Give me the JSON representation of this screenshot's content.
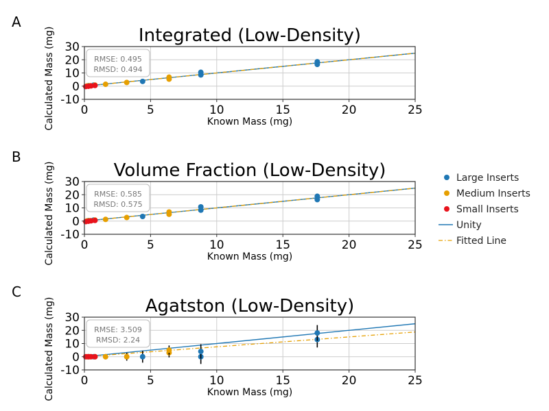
{
  "legend": [
    {
      "label": "Large Inserts",
      "kind": "marker",
      "color": "#1f77b4"
    },
    {
      "label": "Medium Inserts",
      "kind": "marker",
      "color": "#e69f00"
    },
    {
      "label": "Small Inserts",
      "kind": "marker",
      "color": "#e8131c"
    },
    {
      "label": "Unity",
      "kind": "line",
      "color": "#1f77b4"
    },
    {
      "label": "Fitted Line",
      "kind": "dashdot",
      "color": "#e69f00"
    }
  ],
  "colors": {
    "large": "#1f77b4",
    "medium": "#e69f00",
    "small": "#e8131c",
    "unity": "#1f77b4",
    "fitted": "#e69f00",
    "grid": "#cccccc",
    "error_bar": "#000000"
  },
  "chart_data": [
    {
      "panel": "A",
      "type": "scatter",
      "title": "Integrated (Low-Density)",
      "xlabel": "Known Mass (mg)",
      "ylabel": "Calculated Mass (mg)",
      "xlim": [
        0,
        25
      ],
      "ylim": [
        -10,
        30
      ],
      "xticks": [
        0,
        5,
        10,
        15,
        20,
        25
      ],
      "yticks": [
        -10,
        0,
        10,
        20,
        30
      ],
      "grid": true,
      "stats": {
        "rmse": "RMSE: 0.495",
        "rmsd": "RMSD: 0.494"
      },
      "fitted_line": {
        "slope": 1.0,
        "intercept": 0.0
      },
      "series": [
        {
          "name": "Large Inserts",
          "points": [
            {
              "x": 0.3,
              "y": 0.3,
              "err": 0.3
            },
            {
              "x": 0.7,
              "y": 0.8,
              "err": 0.3
            },
            {
              "x": 4.4,
              "y": 3.6,
              "err": 0.8
            },
            {
              "x": 8.8,
              "y": 8.5,
              "err": 1.0
            },
            {
              "x": 8.8,
              "y": 10.5,
              "err": 1.0
            },
            {
              "x": 17.6,
              "y": 16.5,
              "err": 1.0
            },
            {
              "x": 17.6,
              "y": 18.5,
              "err": 1.0
            }
          ]
        },
        {
          "name": "Medium Inserts",
          "points": [
            {
              "x": 0.2,
              "y": 0.1,
              "err": 0.3
            },
            {
              "x": 0.4,
              "y": 0.3,
              "err": 0.3
            },
            {
              "x": 0.8,
              "y": 0.8,
              "err": 0.3
            },
            {
              "x": 1.6,
              "y": 1.4,
              "err": 0.5
            },
            {
              "x": 3.2,
              "y": 2.8,
              "err": 0.6
            },
            {
              "x": 6.4,
              "y": 5.3,
              "err": 0.8
            },
            {
              "x": 6.4,
              "y": 6.8,
              "err": 0.8
            }
          ]
        },
        {
          "name": "Small Inserts",
          "points": [
            {
              "x": 0.1,
              "y": -0.3,
              "err": 0.3
            },
            {
              "x": 0.3,
              "y": -0.1,
              "err": 0.3
            },
            {
              "x": 0.5,
              "y": 0.2,
              "err": 0.3
            },
            {
              "x": 0.8,
              "y": 0.5,
              "err": 0.3
            }
          ]
        }
      ]
    },
    {
      "panel": "B",
      "type": "scatter",
      "title": "Volume Fraction (Low-Density)",
      "xlabel": "Known Mass (mg)",
      "ylabel": "Calculated Mass (mg)",
      "xlim": [
        0,
        25
      ],
      "ylim": [
        -10,
        30
      ],
      "xticks": [
        0,
        5,
        10,
        15,
        20,
        25
      ],
      "yticks": [
        -10,
        0,
        10,
        20,
        30
      ],
      "grid": true,
      "stats": {
        "rmse": "RMSE: 0.585",
        "rmsd": "RMSD: 0.575"
      },
      "fitted_line": {
        "slope": 1.0,
        "intercept": 0.0
      },
      "series": [
        {
          "name": "Large Inserts",
          "points": [
            {
              "x": 0.3,
              "y": 0.3,
              "err": 0.3
            },
            {
              "x": 0.7,
              "y": 0.8,
              "err": 0.3
            },
            {
              "x": 4.4,
              "y": 3.5,
              "err": 0.8
            },
            {
              "x": 8.8,
              "y": 8.3,
              "err": 1.0
            },
            {
              "x": 8.8,
              "y": 10.8,
              "err": 1.0
            },
            {
              "x": 17.6,
              "y": 16.3,
              "err": 1.0
            },
            {
              "x": 17.6,
              "y": 18.8,
              "err": 1.0
            }
          ]
        },
        {
          "name": "Medium Inserts",
          "points": [
            {
              "x": 0.2,
              "y": 0.1,
              "err": 0.3
            },
            {
              "x": 0.4,
              "y": 0.3,
              "err": 0.3
            },
            {
              "x": 0.8,
              "y": 0.8,
              "err": 0.3
            },
            {
              "x": 1.6,
              "y": 1.3,
              "err": 0.5
            },
            {
              "x": 3.2,
              "y": 2.7,
              "err": 0.6
            },
            {
              "x": 6.4,
              "y": 5.2,
              "err": 0.8
            },
            {
              "x": 6.4,
              "y": 6.9,
              "err": 0.8
            }
          ]
        },
        {
          "name": "Small Inserts",
          "points": [
            {
              "x": 0.1,
              "y": -0.4,
              "err": 0.3
            },
            {
              "x": 0.3,
              "y": -0.1,
              "err": 0.3
            },
            {
              "x": 0.5,
              "y": 0.2,
              "err": 0.3
            },
            {
              "x": 0.8,
              "y": 0.5,
              "err": 0.3
            }
          ]
        }
      ]
    },
    {
      "panel": "C",
      "type": "scatter",
      "title": "Agatston (Low-Density)",
      "xlabel": "Known Mass (mg)",
      "ylabel": "Calculated Mass (mg)",
      "xlim": [
        0,
        25
      ],
      "ylim": [
        -10,
        30
      ],
      "xticks": [
        0,
        5,
        10,
        15,
        20,
        25
      ],
      "yticks": [
        -10,
        0,
        10,
        20,
        30
      ],
      "grid": true,
      "stats": {
        "rmse": "RMSE: 3.509",
        "rmsd": "RMSD: 2.24"
      },
      "fitted_line": {
        "slope": 0.75,
        "intercept": 0.0
      },
      "series": [
        {
          "name": "Large Inserts",
          "points": [
            {
              "x": 0.3,
              "y": 0.0,
              "err": 1.5
            },
            {
              "x": 0.7,
              "y": 0.0,
              "err": 1.5
            },
            {
              "x": 4.4,
              "y": 0.0,
              "err": 4.5
            },
            {
              "x": 8.8,
              "y": 0.0,
              "err": 5.5
            },
            {
              "x": 8.8,
              "y": 4.0,
              "err": 5.5
            },
            {
              "x": 17.6,
              "y": 13.0,
              "err": 6.0
            },
            {
              "x": 17.6,
              "y": 18.0,
              "err": 6.0
            }
          ]
        },
        {
          "name": "Medium Inserts",
          "points": [
            {
              "x": 0.2,
              "y": 0.0,
              "err": 1.0
            },
            {
              "x": 0.4,
              "y": 0.0,
              "err": 1.0
            },
            {
              "x": 0.8,
              "y": 0.0,
              "err": 1.0
            },
            {
              "x": 1.6,
              "y": 0.0,
              "err": 2.0
            },
            {
              "x": 3.2,
              "y": 0.0,
              "err": 3.0
            },
            {
              "x": 6.4,
              "y": 3.0,
              "err": 3.5
            },
            {
              "x": 6.4,
              "y": 5.0,
              "err": 3.5
            }
          ]
        },
        {
          "name": "Small Inserts",
          "points": [
            {
              "x": 0.1,
              "y": 0.0,
              "err": 0.5
            },
            {
              "x": 0.3,
              "y": 0.0,
              "err": 0.5
            },
            {
              "x": 0.5,
              "y": 0.0,
              "err": 0.5
            },
            {
              "x": 0.8,
              "y": 0.0,
              "err": 0.5
            }
          ]
        }
      ]
    }
  ]
}
